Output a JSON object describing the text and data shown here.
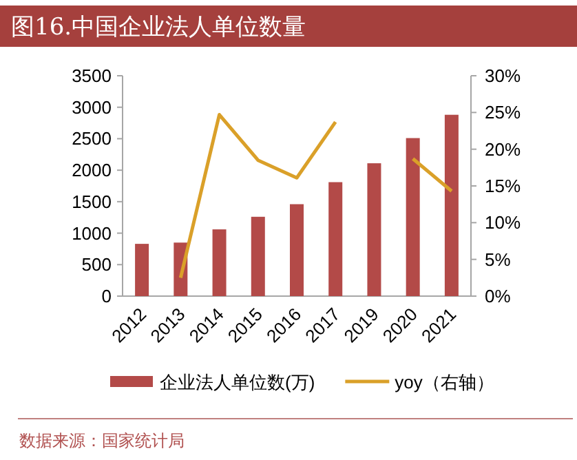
{
  "chart_data": {
    "type": "bar",
    "title": "图16.中国企业法人单位数量",
    "categories": [
      "2012",
      "2013",
      "2014",
      "2015",
      "2016",
      "2017",
      "2019",
      "2020",
      "2021"
    ],
    "series": [
      {
        "name": "企业法人单位数(万)",
        "color": "#b34a48",
        "values": [
          830,
          850,
          1060,
          1260,
          1460,
          1810,
          2110,
          2510,
          2880
        ]
      },
      {
        "name": "yoy（右轴）",
        "type": "line",
        "axis": "y2",
        "color": "#daa029",
        "values": [
          null,
          2.5,
          24.7,
          18.5,
          16.1,
          23.7,
          null,
          18.7,
          14.3
        ]
      }
    ],
    "ylim": [
      0,
      3500
    ],
    "yticks": [
      0,
      500,
      1000,
      1500,
      2000,
      2500,
      3000,
      3500
    ],
    "y2lim": [
      0,
      30
    ],
    "y2ticks": [
      {
        "value": 0,
        "label": "0%"
      },
      {
        "value": 5,
        "label": "5%"
      },
      {
        "value": 10,
        "label": "10%"
      },
      {
        "value": 15,
        "label": "15%"
      },
      {
        "value": 20,
        "label": "20%"
      },
      {
        "value": 25,
        "label": "25%"
      },
      {
        "value": 30,
        "label": "30%"
      }
    ],
    "legend": "bottom",
    "annotations": [
      "数据来源：国家统计局"
    ]
  }
}
